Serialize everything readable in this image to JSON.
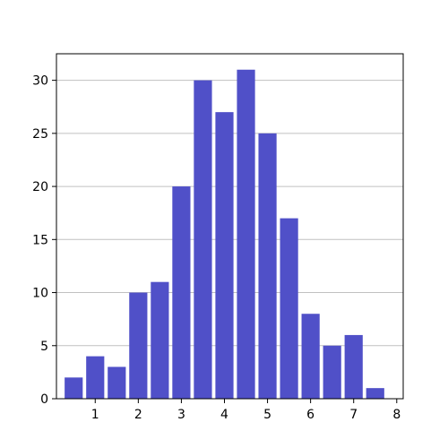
{
  "chart_data": {
    "type": "bar",
    "categories": [
      0.5,
      1.0,
      1.5,
      2.0,
      2.5,
      3.0,
      3.5,
      4.0,
      4.5,
      5.0,
      5.5,
      6.0,
      6.5,
      7.0,
      7.5
    ],
    "values": [
      2,
      4,
      3,
      10,
      11,
      20,
      30,
      27,
      31,
      25,
      17,
      8,
      5,
      6,
      1
    ],
    "bar_width": 0.42,
    "bar_color": "#5050c8",
    "title": "",
    "xlabel": "",
    "ylabel": "",
    "xlim": [
      0.1,
      8.15
    ],
    "ylim": [
      0,
      32.5
    ],
    "xticks": [
      1,
      2,
      3,
      4,
      5,
      6,
      7,
      8
    ],
    "yticks": [
      0,
      5,
      10,
      15,
      20,
      25,
      30
    ],
    "grid": {
      "y": true,
      "x": false,
      "color": "#c0c0c0"
    },
    "legend": "none"
  }
}
